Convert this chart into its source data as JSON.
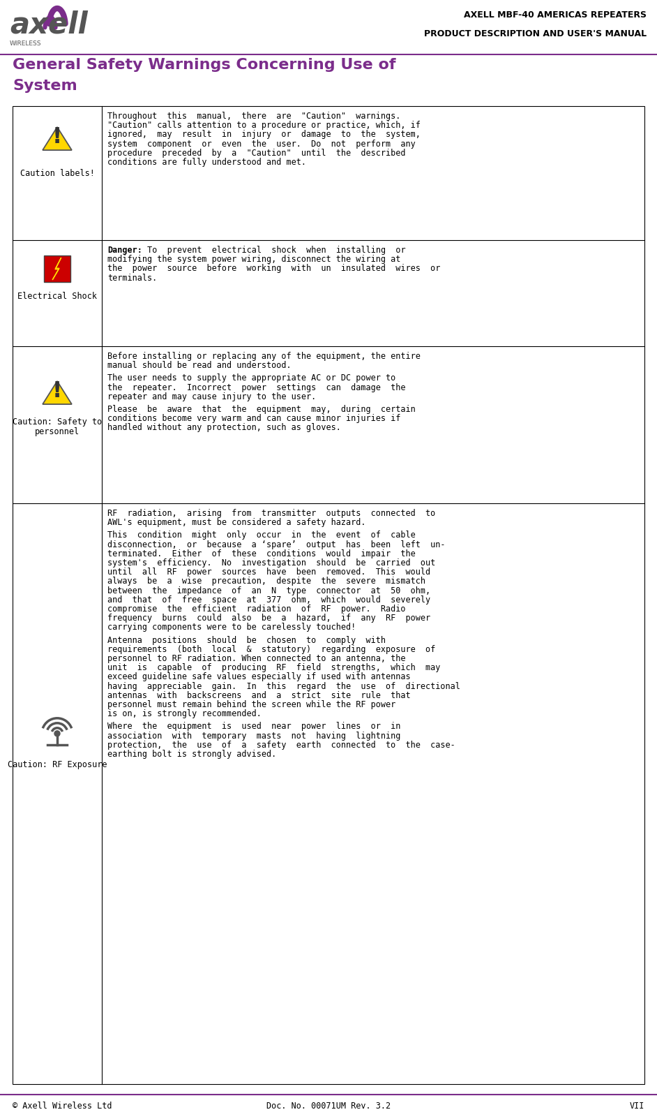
{
  "header_title1": "AXELL MBF-40 AMERICAS REPEATERS",
  "header_title2": "PRODUCT DESCRIPTION AND USER'S MANUAL",
  "header_color": "#000000",
  "logo_text_axell": "axell",
  "logo_text_wireless": "WIRELESS",
  "logo_color_purple": "#7B2D8B",
  "logo_color_gray": "#808080",
  "separator_color": "#7B2D8B",
  "page_title_line1": "General Safety Warnings Concerning Use of",
  "page_title_line2": "System",
  "page_title_color": "#7B2D8B",
  "footer_left": "© Axell Wireless Ltd",
  "footer_center": "Doc. No. 00071UM Rev. 3.2",
  "footer_right": "VII",
  "footer_color": "#000000",
  "table_border_color": "#000000",
  "row1_label": "Caution labels!",
  "row1_text": "Throughout  this  manual,  there  are  \"Caution\"  warnings.\n\"Caution\" calls attention to a procedure or practice, which, if\nignored,  may  result  in  injury  or  damage  to  the  system,\nsystem  component  or  even  the  user.  Do  not  perform  any\nprocedure  preceded  by  a  \"Caution\"  until  the  described\nconditions are fully understood and met.",
  "row2_label": "Electrical Shock",
  "row2_bold_prefix": "Danger:",
  "row2_text": " To  prevent  electrical  shock  when  installing  or\nmodifying the system power wiring, disconnect the wiring at\nthe  power  source  before  working  with  un  insulated  wires  or\nterminals.",
  "row3_label_line1": "Caution: Safety to",
  "row3_label_line2": "personnel",
  "row3_text_parts": [
    "Before installing or replacing any of the equipment, the entire\nmanual should be read and understood.",
    "The user needs to supply the appropriate AC or DC power to\nthe  repeater.  Incorrect  power  settings  can  damage  the\nrepeater and may cause injury to the user.",
    "Please  be  aware  that  the  equipment  may,  during  certain\nconditions become very warm and can cause minor injuries if\nhandled without any protection, such as gloves."
  ],
  "row4_label": "Caution: RF Exposure",
  "row4_text_parts": [
    "RF  radiation,  arising  from  transmitter  outputs  connected  to\nAWL's equipment, must be considered a safety hazard.",
    "This  condition  might  only  occur  in  the  event  of  cable\ndisconnection,  or  because  a ‘spare’  output  has  been  left  un-\nterminated.  Either  of  these  conditions  would  impair  the\nsystem's  efficiency.  No  investigation  should  be  carried  out\nuntil  all  RF  power  sources  have  been  removed.  This  would\nalways  be  a  wise  precaution,  despite  the  severe  mismatch\nbetween  the  impedance  of  an  N  type  connector  at  50  ohm,\nand  that  of  free  space  at  377  ohm,  which  would  severely\ncompromise  the  efficient  radiation  of  RF  power.  Radio\nfrequency  burns  could  also  be  a  hazard,  if  any  RF  power\ncarrying components were to be carelessly touched!",
    "Antenna  positions  should  be  chosen  to  comply  with\nrequirements  (both  local  &  statutory)  regarding  exposure  of\npersonnel to RF radiation. When connected to an antenna, the\nunit  is  capable  of  producing  RF  field  strengths,  which  may\nexceed guideline safe values especially if used with antennas\nhaving  appreciable  gain.  In  this  regard  the  use  of  directional\nantennas  with  backscreens  and  a  strict  site  rule  that\npersonnel must remain behind the screen while the RF power\nis on, is strongly recommended.",
    "Where  the  equipment  is  used  near  power  lines  or  in\nassociation  with  temporary  masts  not  having  lightning\nprotection,  the  use  of  a  safety  earth  connected  to  the  case-\nearthing bolt is strongly advised."
  ],
  "bg_color": "#FFFFFF",
  "text_color": "#000000",
  "font_size_body": 8.5,
  "font_size_header": 9,
  "font_size_title": 16,
  "font_size_footer": 8.5
}
